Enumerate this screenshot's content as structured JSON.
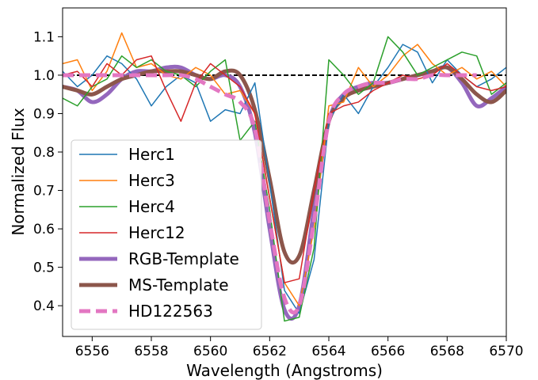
{
  "chart_data": {
    "type": "line",
    "xlabel": "Wavelength (Angstroms)",
    "ylabel": "Normalized Flux",
    "xlim": [
      6555,
      6570
    ],
    "ylim": [
      0.32,
      1.175
    ],
    "xticks": [
      6556,
      6558,
      6560,
      6562,
      6564,
      6566,
      6568,
      6570
    ],
    "xtick_labels": [
      "6556",
      "6558",
      "6560",
      "6562",
      "6564",
      "6566",
      "6568",
      "6570"
    ],
    "yticks": [
      0.4,
      0.5,
      0.6,
      0.7,
      0.8,
      0.9,
      1.0,
      1.1
    ],
    "ytick_labels": [
      "0.4",
      "0.5",
      "0.6",
      "0.7",
      "0.8",
      "0.9",
      "1.0",
      "1.1"
    ],
    "grid": false,
    "legend_position": "lower-left",
    "reference_line": {
      "y": 1.0,
      "color": "#000000",
      "style": "dashed"
    },
    "series": [
      {
        "name": "Herc1",
        "color": "#1f77b4",
        "width": 1.5,
        "style": "solid",
        "x": [
          6555.0,
          6555.5,
          6556.0,
          6556.5,
          6557.0,
          6557.5,
          6558.0,
          6558.5,
          6559.0,
          6559.5,
          6560.0,
          6560.5,
          6561.0,
          6561.5,
          6562.0,
          6562.5,
          6563.0,
          6563.5,
          6564.0,
          6564.5,
          6565.0,
          6565.5,
          6566.0,
          6566.5,
          6567.0,
          6567.5,
          6568.0,
          6568.5,
          6569.0,
          6569.5,
          6570.0
        ],
        "y": [
          1.01,
          0.97,
          1.0,
          1.05,
          1.03,
          0.99,
          0.92,
          0.97,
          1.0,
          0.98,
          0.88,
          0.91,
          0.9,
          0.98,
          0.72,
          0.44,
          0.38,
          0.52,
          0.88,
          0.95,
          0.9,
          0.97,
          1.02,
          1.08,
          1.06,
          0.98,
          1.04,
          1.0,
          0.97,
          0.99,
          1.02
        ]
      },
      {
        "name": "Herc3",
        "color": "#ff7f0e",
        "width": 1.5,
        "style": "solid",
        "x": [
          6555.0,
          6555.5,
          6556.0,
          6556.5,
          6557.0,
          6557.5,
          6558.0,
          6558.5,
          6559.0,
          6559.5,
          6560.0,
          6560.5,
          6561.0,
          6561.5,
          6562.0,
          6562.5,
          6563.0,
          6563.5,
          6564.0,
          6564.5,
          6565.0,
          6565.5,
          6566.0,
          6566.5,
          6567.0,
          6567.5,
          6568.0,
          6568.5,
          6569.0,
          6569.5,
          6570.0
        ],
        "y": [
          1.03,
          1.04,
          0.96,
          1.01,
          1.11,
          1.02,
          1.03,
          1.0,
          0.99,
          1.02,
          1.0,
          0.95,
          0.96,
          0.9,
          0.68,
          0.46,
          0.4,
          0.6,
          0.92,
          0.93,
          1.02,
          0.97,
          1.0,
          1.05,
          1.08,
          1.03,
          1.0,
          1.02,
          0.99,
          1.01,
          0.97
        ]
      },
      {
        "name": "Herc4",
        "color": "#2ca02c",
        "width": 1.5,
        "style": "solid",
        "x": [
          6555.0,
          6555.5,
          6556.0,
          6556.5,
          6557.0,
          6557.5,
          6558.0,
          6558.5,
          6559.0,
          6559.5,
          6560.0,
          6560.5,
          6561.0,
          6561.5,
          6562.0,
          6562.5,
          6563.0,
          6563.5,
          6564.0,
          6564.5,
          6565.0,
          6565.5,
          6566.0,
          6566.5,
          6567.0,
          6567.5,
          6568.0,
          6568.5,
          6569.0,
          6569.5,
          6570.0
        ],
        "y": [
          0.94,
          0.92,
          0.97,
          0.99,
          1.05,
          1.02,
          1.04,
          1.01,
          1.0,
          0.97,
          1.01,
          1.04,
          0.83,
          0.88,
          0.65,
          0.36,
          0.37,
          0.55,
          1.04,
          1.0,
          0.95,
          0.98,
          1.1,
          1.06,
          1.0,
          1.02,
          1.04,
          1.06,
          1.05,
          0.95,
          0.98
        ]
      },
      {
        "name": "Herc12",
        "color": "#d62728",
        "width": 1.5,
        "style": "solid",
        "x": [
          6555.0,
          6555.5,
          6556.0,
          6556.5,
          6557.0,
          6557.5,
          6558.0,
          6558.5,
          6559.0,
          6559.5,
          6560.0,
          6560.5,
          6561.0,
          6561.5,
          6562.0,
          6562.5,
          6563.0,
          6563.5,
          6564.0,
          6564.5,
          6565.0,
          6565.5,
          6566.0,
          6566.5,
          6567.0,
          6567.5,
          6568.0,
          6568.5,
          6569.0,
          6569.5,
          6570.0
        ],
        "y": [
          1.0,
          1.01,
          0.97,
          1.03,
          1.0,
          1.04,
          1.05,
          0.96,
          0.88,
          0.98,
          1.03,
          1.0,
          0.97,
          0.9,
          0.68,
          0.46,
          0.47,
          0.7,
          0.9,
          0.92,
          0.93,
          0.96,
          0.98,
          1.0,
          0.99,
          1.0,
          1.03,
          1.0,
          0.97,
          0.96,
          0.97
        ]
      },
      {
        "name": "RGB-Template",
        "color": "#9467bd",
        "width": 5,
        "style": "solid",
        "x": [
          6555.0,
          6555.5,
          6556.0,
          6556.5,
          6557.0,
          6557.5,
          6558.0,
          6558.5,
          6559.0,
          6559.5,
          6560.0,
          6560.5,
          6561.0,
          6561.5,
          6562.0,
          6562.5,
          6563.0,
          6563.5,
          6564.0,
          6564.5,
          6565.0,
          6565.5,
          6566.0,
          6566.5,
          6567.0,
          6567.5,
          6568.0,
          6568.5,
          6569.0,
          6569.5,
          6570.0
        ],
        "y": [
          0.97,
          0.96,
          0.93,
          0.95,
          0.99,
          1.01,
          1.01,
          1.02,
          1.02,
          1.0,
          0.99,
          1.0,
          0.97,
          0.85,
          0.6,
          0.39,
          0.4,
          0.65,
          0.88,
          0.95,
          0.97,
          0.98,
          0.98,
          0.99,
          1.0,
          1.01,
          1.02,
          0.98,
          0.92,
          0.94,
          0.97
        ]
      },
      {
        "name": "MS-Template",
        "color": "#8c564b",
        "width": 5,
        "style": "solid",
        "x": [
          6555.0,
          6555.5,
          6556.0,
          6556.5,
          6557.0,
          6557.5,
          6558.0,
          6558.5,
          6559.0,
          6559.5,
          6560.0,
          6560.5,
          6561.0,
          6561.5,
          6562.0,
          6562.5,
          6563.0,
          6563.5,
          6564.0,
          6564.5,
          6565.0,
          6565.5,
          6566.0,
          6566.5,
          6567.0,
          6567.5,
          6568.0,
          6568.5,
          6569.0,
          6569.5,
          6570.0
        ],
        "y": [
          0.97,
          0.96,
          0.95,
          0.97,
          0.99,
          1.0,
          1.01,
          1.01,
          1.01,
          1.0,
          0.99,
          1.01,
          1.0,
          0.91,
          0.73,
          0.54,
          0.53,
          0.7,
          0.88,
          0.94,
          0.96,
          0.97,
          0.98,
          0.99,
          1.0,
          1.01,
          1.02,
          0.99,
          0.95,
          0.93,
          0.96
        ]
      },
      {
        "name": "HD122563",
        "color": "#e377c2",
        "width": 5,
        "style": "dashed",
        "x": [
          6555.0,
          6555.5,
          6556.0,
          6556.5,
          6557.0,
          6557.5,
          6558.0,
          6558.5,
          6559.0,
          6559.5,
          6560.0,
          6560.5,
          6561.0,
          6561.5,
          6562.0,
          6562.5,
          6563.0,
          6563.5,
          6564.0,
          6564.5,
          6565.0,
          6565.5,
          6566.0,
          6566.5,
          6567.0,
          6567.5,
          6568.0,
          6568.5,
          6569.0
        ],
        "y": [
          1.0,
          1.0,
          1.0,
          1.0,
          1.0,
          1.0,
          1.0,
          1.0,
          1.0,
          0.99,
          0.97,
          0.95,
          0.93,
          0.86,
          0.62,
          0.42,
          0.4,
          0.62,
          0.88,
          0.95,
          0.97,
          0.98,
          0.98,
          0.99,
          0.99,
          1.0,
          1.0,
          1.0,
          1.0
        ]
      }
    ]
  }
}
